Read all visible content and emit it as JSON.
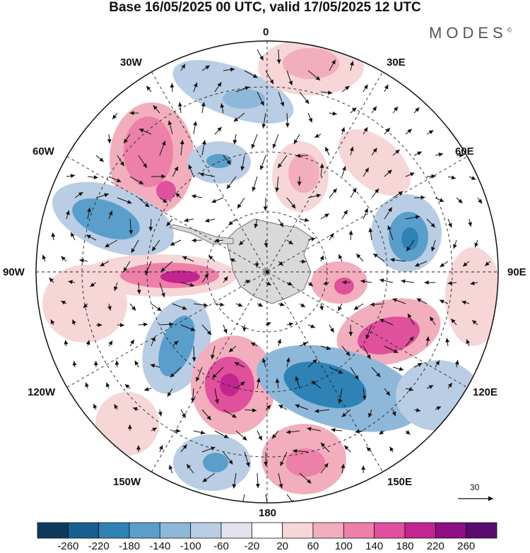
{
  "title": "Base 16/05/2025 00 UTC, valid 17/05/2025 12 UTC",
  "brand": "MODES",
  "brand_mark": "©",
  "longitude_labels": {
    "0": "0",
    "30E": "30E",
    "60E": "60E",
    "90E": "90E",
    "120E": "120E",
    "150E": "150E",
    "180": "180",
    "150W": "150W",
    "120W": "120W",
    "90W": "90W",
    "60W": "60W",
    "30W": "30W"
  },
  "reference_vector": "30",
  "colorbar": {
    "ticks": [
      "-260",
      "-220",
      "-180",
      "-140",
      "-100",
      "-60",
      "-20",
      "20",
      "60",
      "100",
      "140",
      "180",
      "220",
      "260"
    ],
    "colors": [
      "#0d3a5c",
      "#175f8e",
      "#2e82b6",
      "#5a9fcc",
      "#8db8d9",
      "#b9cde4",
      "#e2e3ef",
      "#ffffff",
      "#f7d6d8",
      "#f2aebd",
      "#ec80a8",
      "#e0509c",
      "#c22590",
      "#8e0f86",
      "#5a0b70"
    ]
  },
  "colors": {
    "land": "#d9d9d9",
    "grid": "#222222",
    "arrow": "#111111"
  }
}
